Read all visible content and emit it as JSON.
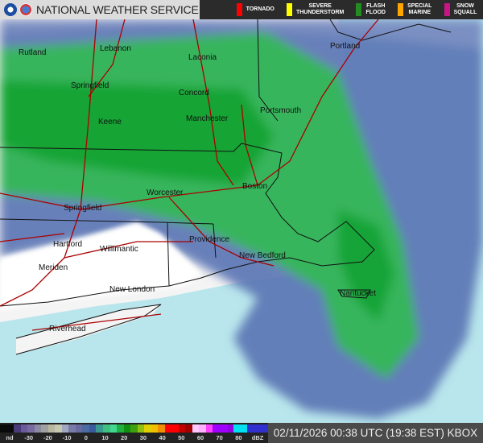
{
  "header": {
    "title": "NATIONAL WEATHER SERVICE",
    "warnings": [
      {
        "label": "TORNADO",
        "color": "#ff0000"
      },
      {
        "label": "SEVERE\nTHUNDERSTORM",
        "color": "#ffff00"
      },
      {
        "label": "FLASH\nFLOOD",
        "color": "#228b22"
      },
      {
        "label": "SPECIAL\nMARINE",
        "color": "#ffa500"
      },
      {
        "label": "SNOW\nSQUALL",
        "color": "#c71585"
      }
    ]
  },
  "cities": [
    "Rutland",
    "Lebanon",
    "Laconia",
    "Springfield",
    "Concord",
    "Portsmouth",
    "Keene",
    "Manchester",
    "Portland",
    "Worcester",
    "Boston",
    "Springfield",
    "Hartford",
    "Willimantic",
    "Providence",
    "New Bedford",
    "Meriden",
    "New London",
    "Nantucket",
    "Riverhead"
  ],
  "legend": {
    "labels": [
      "nd",
      "-30",
      "-20",
      "-10",
      "0",
      "10",
      "20",
      "30",
      "40",
      "50",
      "60",
      "70",
      "80",
      "dBZ"
    ],
    "colors": [
      "#0a0a0a",
      "#0a0a0a",
      "#4a3a7a",
      "#6a5a9a",
      "#7a6aa0",
      "#8a8aa0",
      "#a0a0a0",
      "#b8b8a0",
      "#c8c8b0",
      "#a0a8c0",
      "#7a7aa8",
      "#6a6aa0",
      "#4a6aa0",
      "#3a5aa0",
      "#3a9a90",
      "#40c080",
      "#40d890",
      "#20b040",
      "#109010",
      "#40a010",
      "#90c010",
      "#e0d000",
      "#f0c000",
      "#f09000",
      "#ff0000",
      "#ff0000",
      "#c00000",
      "#a00000",
      "#ffc8ff",
      "#ffb0ff",
      "#ff40ff",
      "#a000ff",
      "#a000ff",
      "#9000e0",
      "#00e0f0",
      "#00e0f0",
      "#3030d0",
      "#3030d0",
      "#3030d0"
    ]
  },
  "timestamp": "02/11/2026 00:38 UTC (19:38 EST) KBOX"
}
